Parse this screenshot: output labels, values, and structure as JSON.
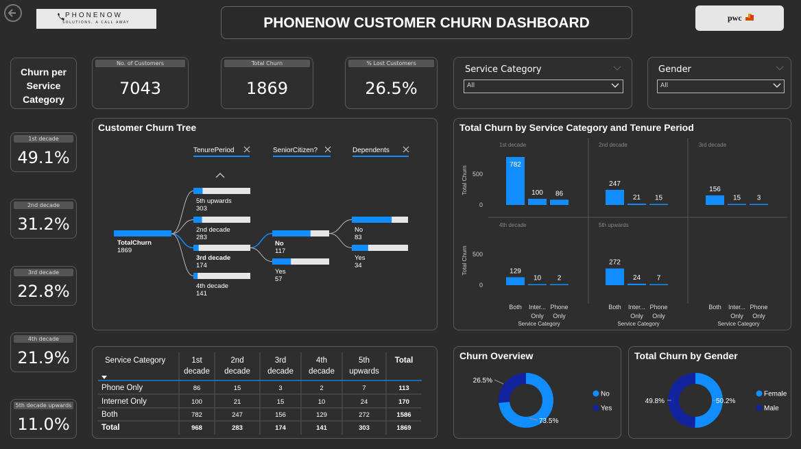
{
  "header": {
    "back_icon": "back-arrow-icon",
    "logo_name": "PHONENOW",
    "logo_tagline": "SOLUTIONS, A CALL AWAY",
    "title": "PHONENOW CUSTOMER CHURN DASHBOARD",
    "brand_logo": "pwc"
  },
  "kpis": {
    "customers": {
      "label": "No. of Customers",
      "value": "7043"
    },
    "churn": {
      "label": "Total Churn",
      "value": "1869"
    },
    "lost": {
      "label": "% Lost Customers",
      "value": "26.5%"
    }
  },
  "filters": {
    "service": {
      "label": "Service Category",
      "value": "All"
    },
    "gender": {
      "label": "Gender",
      "value": "All"
    }
  },
  "side": {
    "title": "Churn per Service Category",
    "cards": [
      {
        "label": "1st decade",
        "value": "49.1%"
      },
      {
        "label": "2nd decade",
        "value": "31.2%"
      },
      {
        "label": "3rd decade",
        "value": "22.8%"
      },
      {
        "label": "4th decade",
        "value": "21.9%"
      },
      {
        "label": "5th decade upwards",
        "value": "11.0%"
      }
    ]
  },
  "tree": {
    "title": "Customer Churn Tree",
    "levels": [
      "TenurePeriod",
      "SeniorCitizen?",
      "Dependents"
    ],
    "root": {
      "label": "TotalChurn",
      "value": "1869",
      "fill": 1.0
    },
    "tenure": [
      {
        "label": "5th upwards",
        "value": "303",
        "fill": 0.162
      },
      {
        "label": "2nd decade",
        "value": "283",
        "fill": 0.151
      },
      {
        "label": "3rd decade",
        "value": "174",
        "fill": 0.093,
        "selected": true
      },
      {
        "label": "4th decade",
        "value": "141",
        "fill": 0.075
      }
    ],
    "senior": [
      {
        "label": "No",
        "value": "117",
        "fill": 0.672,
        "selected": true
      },
      {
        "label": "Yes",
        "value": "57",
        "fill": 0.328
      }
    ],
    "dependents": [
      {
        "label": "No",
        "value": "83",
        "fill": 0.709
      },
      {
        "label": "Yes",
        "value": "34",
        "fill": 0.291
      }
    ]
  },
  "chart_data": {
    "type": "bar",
    "title": "Total Churn by Service Category and Tenure Period",
    "ylabel": "Total Churn",
    "xlabel": "Service Category",
    "categories": [
      "Both",
      "Internet Only",
      "Phone Only"
    ],
    "yticks": [
      0,
      500
    ],
    "ylim": [
      0,
      800
    ],
    "panels": [
      {
        "name": "1st decade",
        "values": [
          782,
          100,
          86
        ]
      },
      {
        "name": "2nd decade",
        "values": [
          247,
          21,
          15
        ]
      },
      {
        "name": "3rd decade",
        "values": [
          156,
          15,
          3
        ]
      },
      {
        "name": "4th decade",
        "values": [
          129,
          10,
          2
        ]
      },
      {
        "name": "5th upwards",
        "values": [
          272,
          24,
          7
        ]
      }
    ],
    "bar_color": "#118dff"
  },
  "table": {
    "headers": [
      "Service Category",
      "1st decade",
      "2nd decade",
      "3rd decade",
      "4th decade",
      "5th upwards",
      "Total"
    ],
    "rows": [
      [
        "Phone Only",
        "86",
        "15",
        "3",
        "2",
        "7",
        "113"
      ],
      [
        "Internet Only",
        "100",
        "21",
        "15",
        "10",
        "24",
        "170"
      ],
      [
        "Both",
        "782",
        "247",
        "156",
        "129",
        "272",
        "1586"
      ]
    ],
    "total": [
      "Total",
      "968",
      "283",
      "174",
      "141",
      "303",
      "1869"
    ]
  },
  "overview": {
    "title": "Churn Overview",
    "slices": [
      {
        "name": "No",
        "pct": 73.5,
        "label": "73.5%",
        "color": "#118dff"
      },
      {
        "name": "Yes",
        "pct": 26.5,
        "label": "26.5%",
        "color": "#12239e"
      }
    ]
  },
  "gender": {
    "title": "Total Churn by Gender",
    "slices": [
      {
        "name": "Female",
        "pct": 50.2,
        "label": "50.2%",
        "color": "#118dff"
      },
      {
        "name": "Male",
        "pct": 49.8,
        "label": "49.8%",
        "color": "#12239e"
      }
    ]
  }
}
